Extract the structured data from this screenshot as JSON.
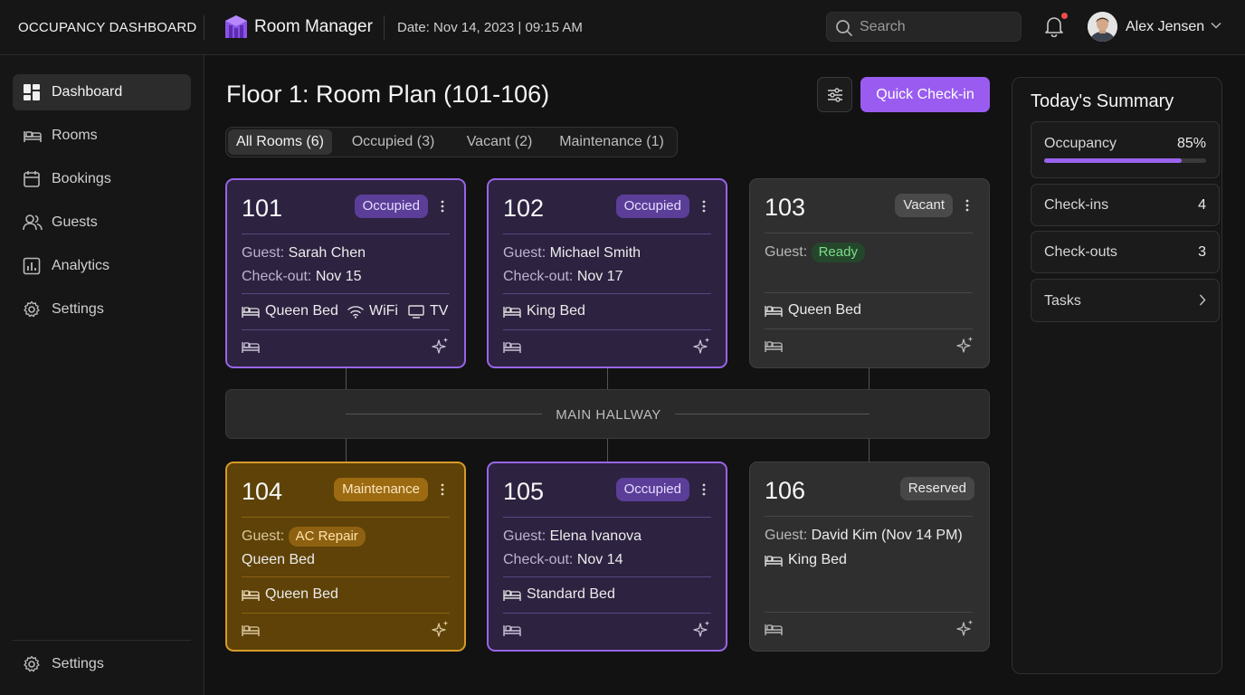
{
  "header": {
    "app_title": "OCCUPANCY DASHBOARD",
    "brand": "Room Manager",
    "date": "Date: Nov 14, 2023 | 09:15 AM",
    "search_placeholder": "Search",
    "user_name": "Alex Jensen",
    "notification_dot": true
  },
  "sidebar": {
    "items": [
      {
        "label": "Dashboard",
        "icon": "dashboard-icon",
        "active": true
      },
      {
        "label": "Rooms",
        "icon": "bed-icon"
      },
      {
        "label": "Bookings",
        "icon": "calendar-icon"
      },
      {
        "label": "Guests",
        "icon": "users-icon"
      },
      {
        "label": "Analytics",
        "icon": "chart-icon"
      },
      {
        "label": "Settings",
        "icon": "gear-icon"
      }
    ],
    "footer_settings": "Settings"
  },
  "main": {
    "title": "Floor 1: Room Plan (101-106)",
    "quick_checkin": "Quick Check-in",
    "tabs": [
      {
        "label": "All Rooms (6)",
        "active": true
      },
      {
        "label": "Occupied (3)"
      },
      {
        "label": "Vacant (2)"
      },
      {
        "label": "Maintenance (1)"
      }
    ],
    "hallway": "MAIN HALLWAY"
  },
  "rooms": [
    {
      "number": "101",
      "status": "Occupied",
      "guest_label": "Guest:",
      "guest": "Sarah Chen",
      "checkout_label": "Check-out:",
      "checkout": "Nov 15",
      "amenities": [
        "Queen Bed",
        "WiFi",
        "TV"
      ]
    },
    {
      "number": "102",
      "status": "Occupied",
      "guest_label": "Guest:",
      "guest": "Michael Smith",
      "checkout_label": "Check-out:",
      "checkout": "Nov 17",
      "amenities": [
        "King Bed"
      ]
    },
    {
      "number": "103",
      "status": "Vacant",
      "guest_label": "Guest:",
      "guest_pill": "Ready",
      "amenities": [
        "Queen Bed"
      ]
    },
    {
      "number": "104",
      "status": "Maintenance",
      "guest_label": "Guest:",
      "guest_pill": "AC Repair",
      "line2": "Queen Bed",
      "amenities": [
        "Queen Bed"
      ]
    },
    {
      "number": "105",
      "status": "Occupied",
      "guest_label": "Guest:",
      "guest": "Elena Ivanova",
      "checkout_label": "Check-out:",
      "checkout": "Nov 14",
      "amenities": [
        "Standard Bed"
      ]
    },
    {
      "number": "106",
      "status": "Reserved",
      "guest_label": "Guest:",
      "guest": "David Kim (Nov 14 PM)",
      "line2": "King Bed"
    }
  ],
  "summary": {
    "title": "Today's Summary",
    "occupancy_label": "Occupancy",
    "occupancy_value": "85%",
    "occupancy_fraction": 0.85,
    "checkins_label": "Check-ins",
    "checkins_value": "4",
    "checkouts_label": "Check-outs",
    "checkouts_value": "3",
    "tasks_label": "Tasks"
  },
  "colors": {
    "accent": "#9a5cf0",
    "occupied_border": "#9865e8",
    "maintenance_border": "#d69a2a",
    "ready_green": "#7ddd8c",
    "notification_red": "#ef4b4b"
  }
}
